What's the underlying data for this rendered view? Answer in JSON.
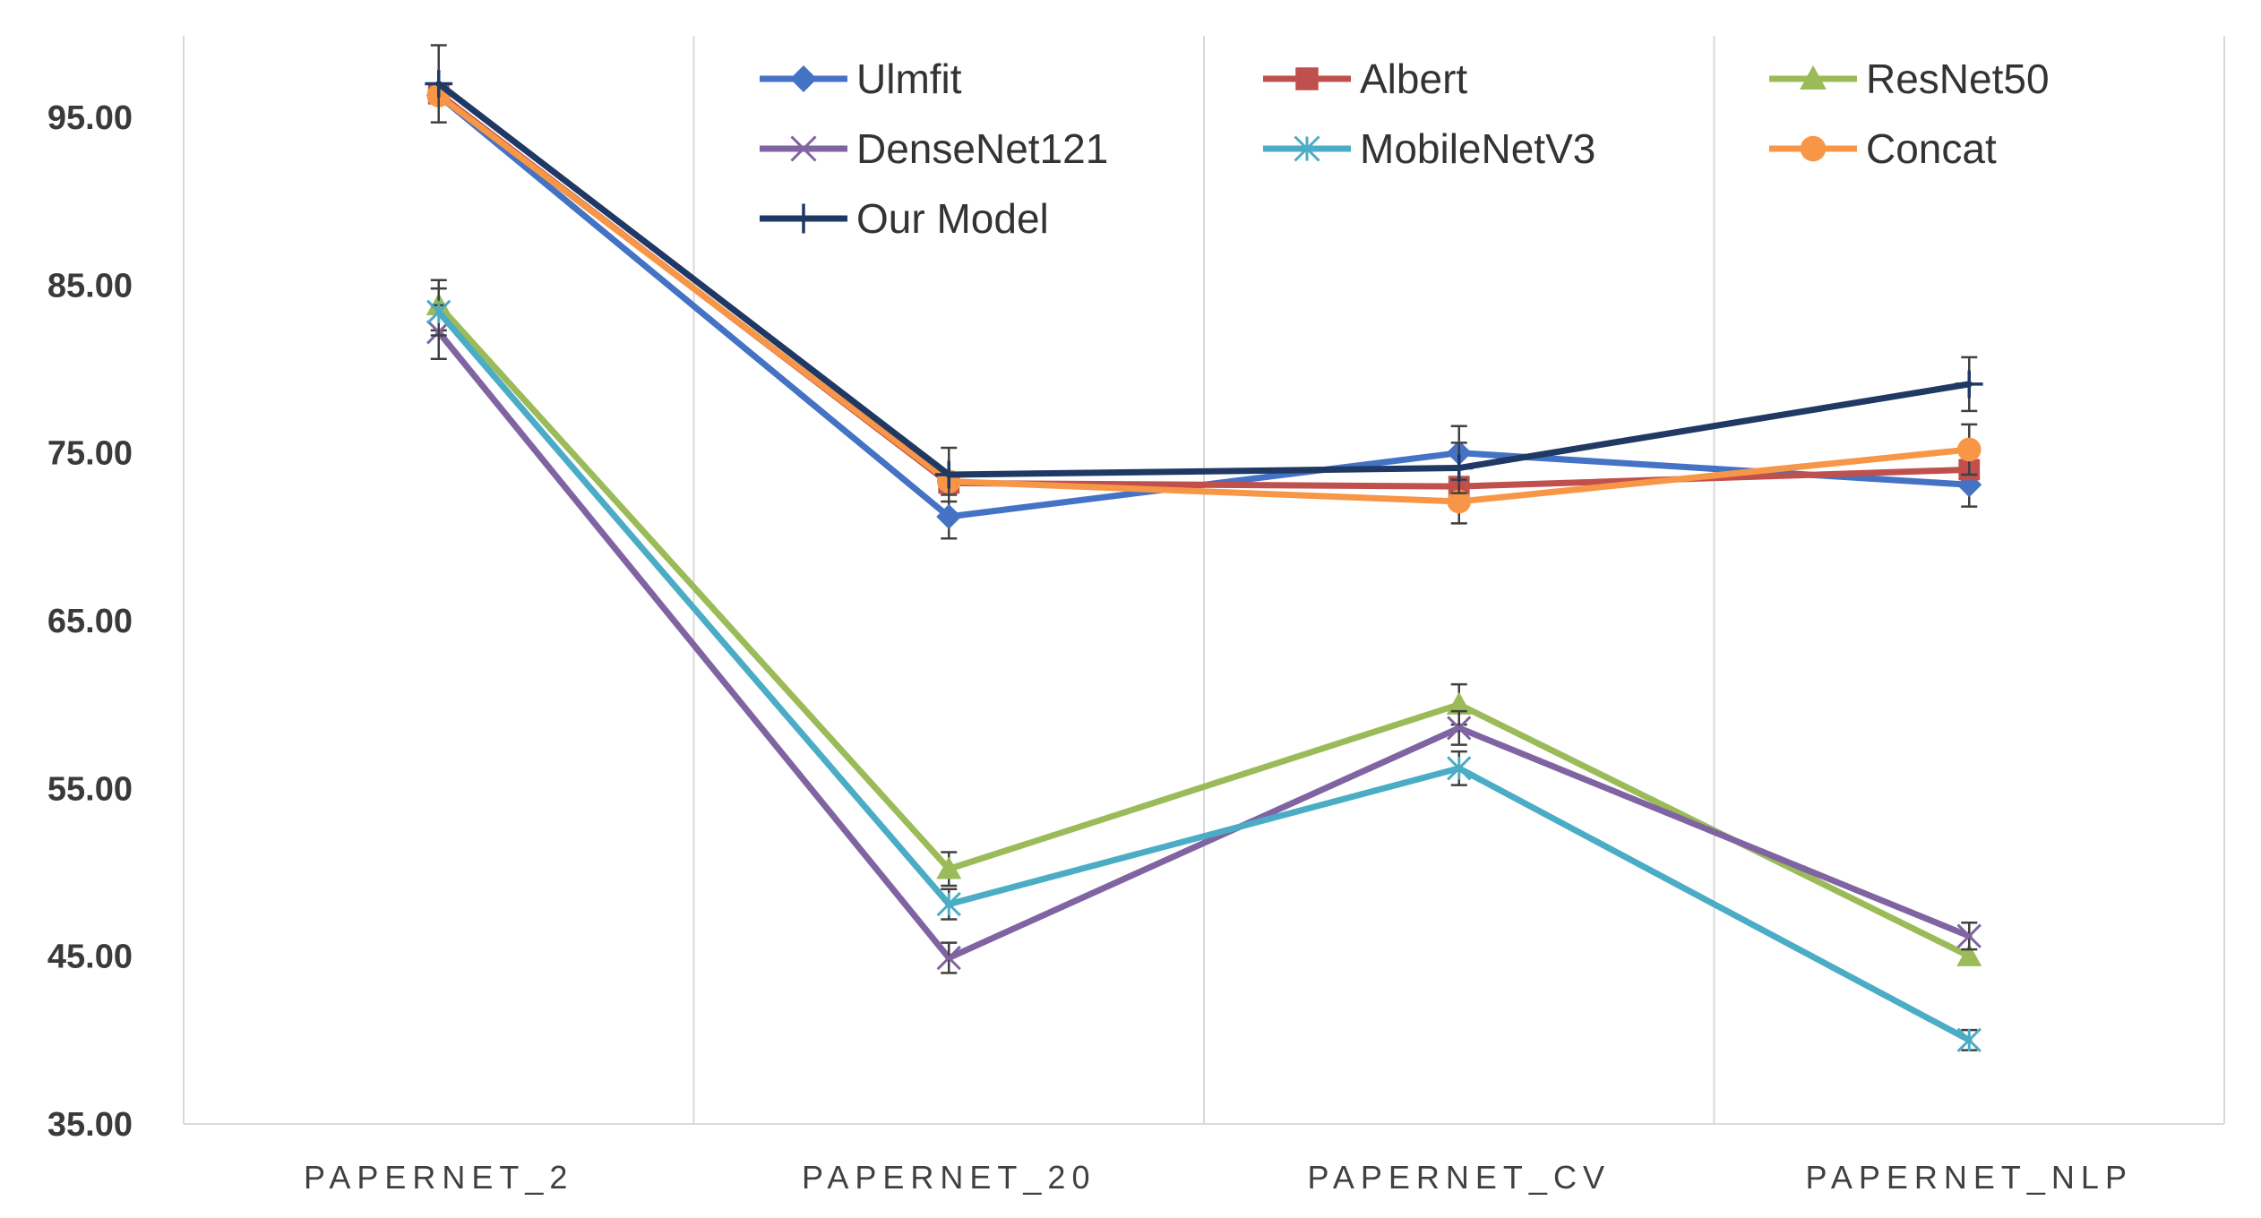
{
  "chart_data": {
    "type": "line",
    "title": "",
    "xlabel": "",
    "ylabel": "",
    "categories": [
      "PAPERNET_2",
      "PAPERNET_20",
      "PAPERNET_CV",
      "PAPERNET_NLP"
    ],
    "ylim": [
      35,
      100
    ],
    "y_ticks": [
      35,
      45,
      55,
      65,
      75,
      85,
      95
    ],
    "y_tick_labels": [
      "35.00",
      "45.00",
      "55.00",
      "65.00",
      "75.00",
      "85.00",
      "95.00"
    ],
    "grid": "vertical separators between categories",
    "legend_position": "top-right",
    "series": [
      {
        "name": "Ulmfit",
        "color": "#4472c4",
        "marker": "diamond",
        "values": [
          96.3,
          71.2,
          75.0,
          73.1
        ],
        "errors": [
          null,
          1.3,
          1.6,
          1.3
        ]
      },
      {
        "name": "Albert",
        "color": "#c0504d",
        "marker": "square",
        "values": [
          96.4,
          73.2,
          73.0,
          74.0
        ],
        "errors": [
          null,
          null,
          null,
          null
        ]
      },
      {
        "name": "ResNet50",
        "color": "#9bbb59",
        "marker": "triangle",
        "values": [
          83.8,
          50.2,
          60.0,
          45.0
        ],
        "errors": [
          1.5,
          1.0,
          1.2,
          null
        ]
      },
      {
        "name": "DenseNet121",
        "color": "#8064a2",
        "marker": "x",
        "values": [
          82.2,
          44.9,
          58.6,
          46.2
        ],
        "errors": [
          1.6,
          0.9,
          1.0,
          0.8
        ]
      },
      {
        "name": "MobileNetV3",
        "color": "#4bacc6",
        "marker": "asterisk",
        "values": [
          83.4,
          48.1,
          56.2,
          40.0
        ],
        "errors": [
          1.4,
          0.9,
          1.0,
          0.6
        ]
      },
      {
        "name": "Concat",
        "color": "#f79646",
        "marker": "circle",
        "values": [
          96.3,
          73.3,
          72.1,
          75.2
        ],
        "errors": [
          null,
          null,
          1.3,
          1.5
        ]
      },
      {
        "name": "Our Model",
        "color": "#1f3864",
        "marker": "plus",
        "values": [
          97.0,
          73.7,
          74.1,
          79.1
        ],
        "errors": [
          2.3,
          1.6,
          1.5,
          1.6
        ]
      }
    ]
  }
}
